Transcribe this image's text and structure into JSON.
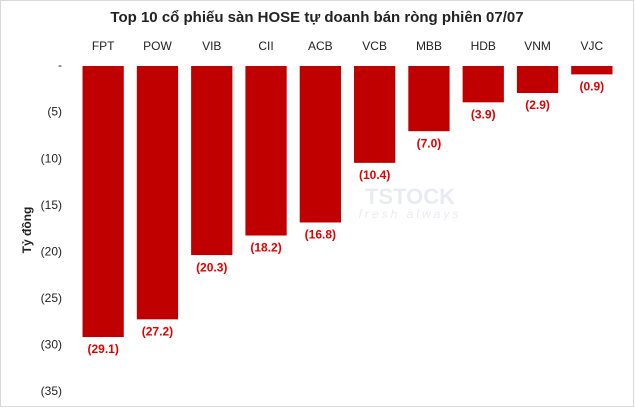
{
  "chart_data": {
    "type": "bar",
    "title": "Top 10 cổ phiếu sàn HOSE tự doanh bán ròng phiên 07/07",
    "y_label": "Tỷ đồng",
    "annotations": [
      "TSTOCK",
      "fresh always"
    ],
    "categories": [
      "FPT",
      "POW",
      "VIB",
      "CII",
      "ACB",
      "VCB",
      "MBB",
      "HDB",
      "VNM",
      "VJC"
    ],
    "values": [
      -29.1,
      -27.2,
      -20.3,
      -18.2,
      -16.8,
      -10.4,
      -7.0,
      -3.9,
      -2.9,
      -0.9
    ],
    "value_labels": [
      "(29.1)",
      "(27.2)",
      "(20.3)",
      "(18.2)",
      "(16.8)",
      "(10.4)",
      "(7.0)",
      "(3.9)",
      "(2.9)",
      "(0.9)"
    ],
    "color": "#c00000",
    "label_color": "#e00000",
    "ylim": [
      -35,
      0
    ],
    "yticks": [
      {
        "value": 0,
        "label": "-"
      },
      {
        "value": -5,
        "label": "(5)"
      },
      {
        "value": -10,
        "label": "(10)"
      },
      {
        "value": -15,
        "label": "(15)"
      },
      {
        "value": -20,
        "label": "(20)"
      },
      {
        "value": -25,
        "label": "(25)"
      },
      {
        "value": -30,
        "label": "(30)"
      },
      {
        "value": -35,
        "label": "(35)"
      }
    ],
    "grid": false
  }
}
